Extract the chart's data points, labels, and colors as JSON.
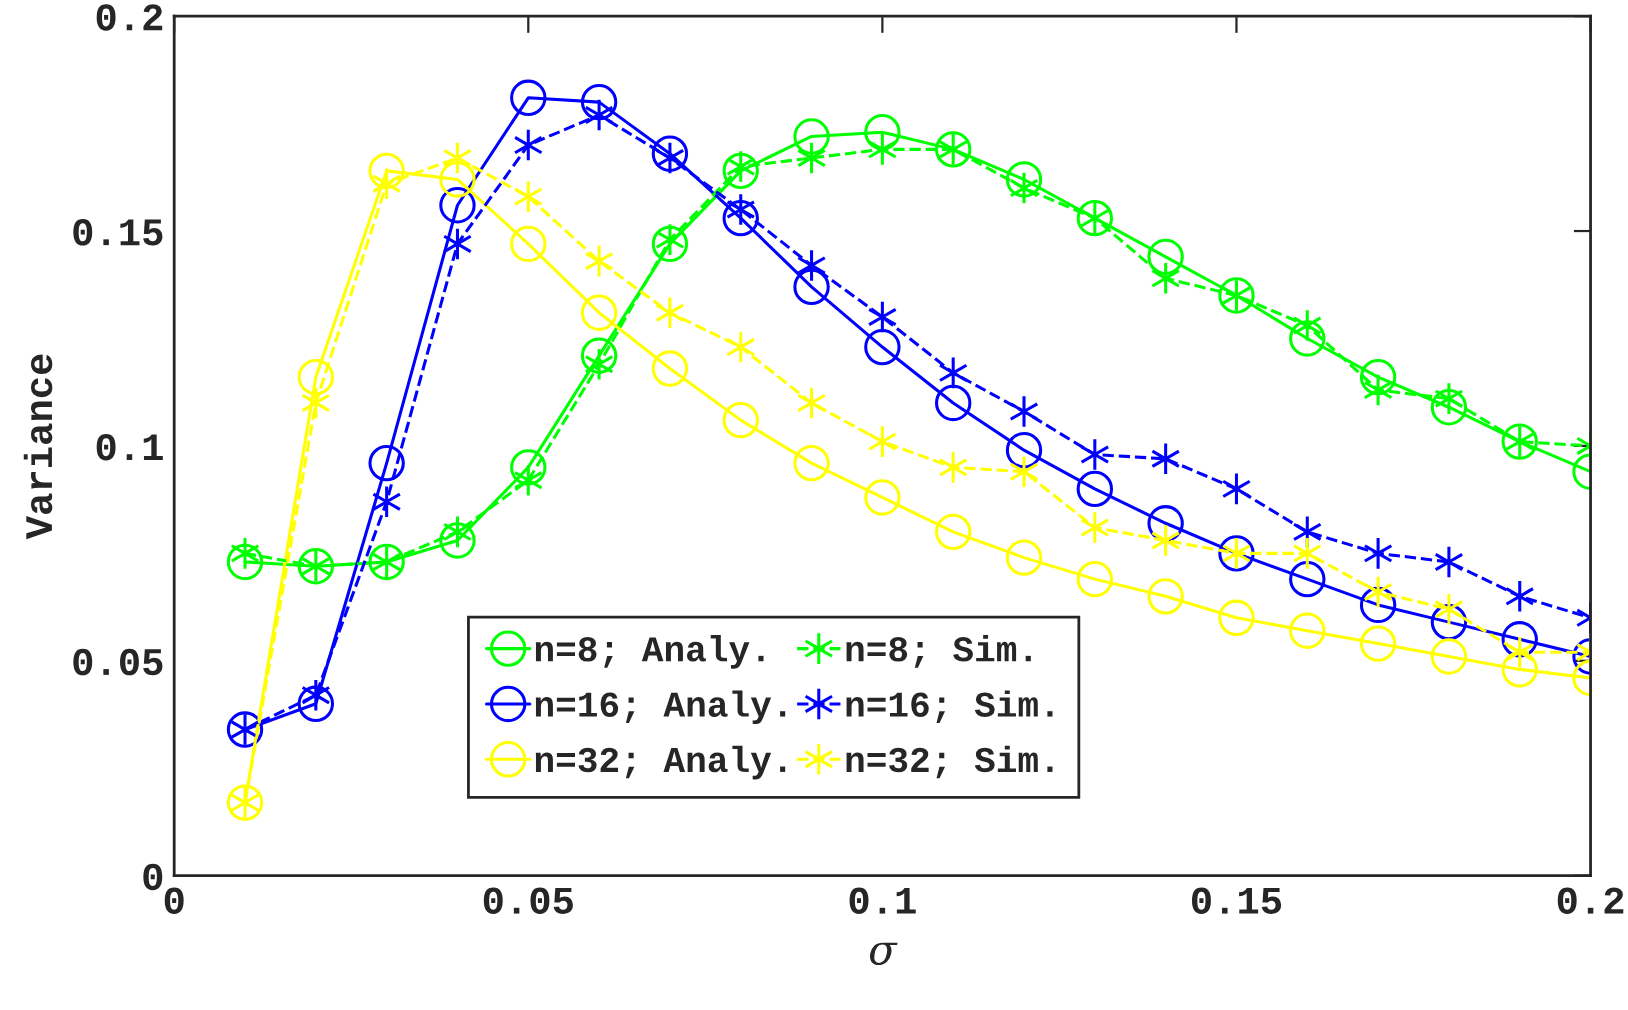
{
  "chart_data": {
    "type": "line",
    "xlabel": "σ",
    "ylabel": "Variance",
    "x": [
      0.01,
      0.02,
      0.03,
      0.04,
      0.05,
      0.06,
      0.07,
      0.08,
      0.09,
      0.1,
      0.11,
      0.12,
      0.13,
      0.14,
      0.15,
      0.16,
      0.17,
      0.18,
      0.19,
      0.2
    ],
    "series": [
      {
        "name": "n=8; Analy.",
        "color": "#00ff00",
        "marker": "circle",
        "line_style": "solid",
        "values": [
          0.073,
          0.072,
          0.073,
          0.078,
          0.095,
          0.121,
          0.147,
          0.164,
          0.172,
          0.173,
          0.169,
          0.162,
          0.153,
          0.144,
          0.135,
          0.125,
          0.116,
          0.109,
          0.101,
          0.094
        ]
      },
      {
        "name": "n=16; Analy.",
        "color": "#0000ff",
        "marker": "circle",
        "line_style": "solid",
        "values": [
          0.034,
          0.04,
          0.096,
          0.156,
          0.181,
          0.18,
          0.168,
          0.153,
          0.137,
          0.123,
          0.11,
          0.099,
          0.09,
          0.082,
          0.075,
          0.069,
          0.063,
          0.059,
          0.055,
          0.051
        ]
      },
      {
        "name": "n=32; Analy.",
        "color": "#ffff00",
        "marker": "circle",
        "line_style": "solid",
        "values": [
          0.017,
          0.116,
          0.164,
          0.162,
          0.147,
          0.131,
          0.118,
          0.106,
          0.096,
          0.088,
          0.08,
          0.074,
          0.069,
          0.065,
          0.06,
          0.057,
          0.054,
          0.051,
          0.048,
          0.046
        ]
      },
      {
        "name": "n=8; Sim.",
        "color": "#00ff00",
        "marker": "cross",
        "line_style": "dashed",
        "values": [
          0.075,
          0.072,
          0.073,
          0.08,
          0.092,
          0.119,
          0.148,
          0.165,
          0.167,
          0.169,
          0.169,
          0.16,
          0.153,
          0.139,
          0.135,
          0.128,
          0.113,
          0.111,
          0.101,
          0.1
        ]
      },
      {
        "name": "n=16; Sim.",
        "color": "#0000ff",
        "marker": "cross",
        "line_style": "dashed",
        "values": [
          0.034,
          0.042,
          0.087,
          0.147,
          0.17,
          0.177,
          0.167,
          0.155,
          0.142,
          0.13,
          0.117,
          0.108,
          0.098,
          0.097,
          0.09,
          0.08,
          0.075,
          0.073,
          0.065,
          0.06
        ]
      },
      {
        "name": "n=32; Sim.",
        "color": "#ffff00",
        "marker": "cross",
        "line_style": "dashed",
        "values": [
          0.017,
          0.11,
          0.161,
          0.167,
          0.158,
          0.143,
          0.131,
          0.123,
          0.11,
          0.101,
          0.095,
          0.094,
          0.081,
          0.078,
          0.075,
          0.075,
          0.066,
          0.062,
          0.052,
          0.052
        ]
      }
    ],
    "xlim": [
      0,
      0.2
    ],
    "xticks": [
      0,
      0.05,
      0.1,
      0.15,
      0.2
    ],
    "ylim": [
      0,
      0.2
    ],
    "yticks": [
      0,
      0.05,
      0.1,
      0.15,
      0.2
    ],
    "legend": "bottom left",
    "grid": false
  }
}
